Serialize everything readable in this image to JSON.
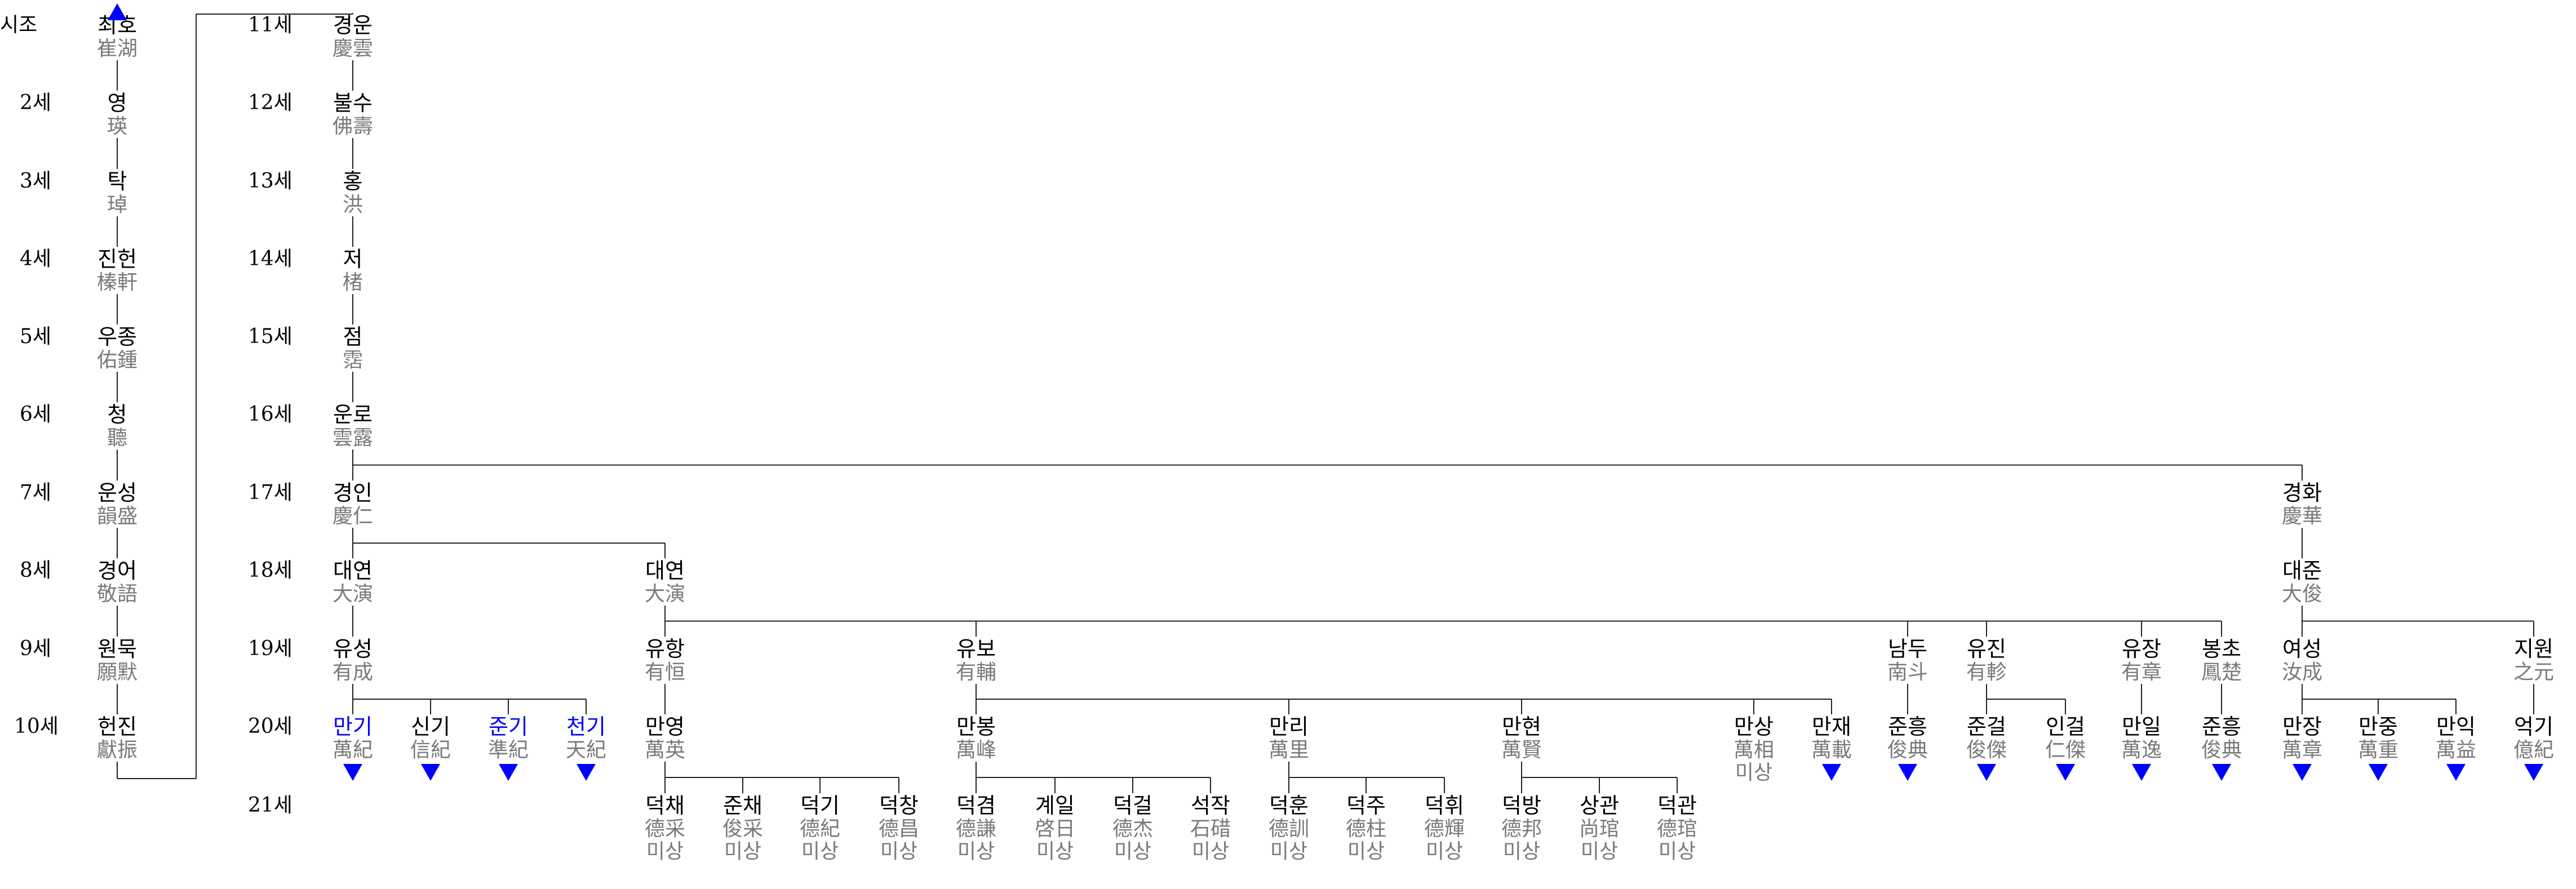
{
  "generations": [
    {
      "id": "g1",
      "label": "시조"
    },
    {
      "id": "g2",
      "label": "2세"
    },
    {
      "id": "g3",
      "label": "3세"
    },
    {
      "id": "g4",
      "label": "4세"
    },
    {
      "id": "g5",
      "label": "5세"
    },
    {
      "id": "g6",
      "label": "6세"
    },
    {
      "id": "g7",
      "label": "7세"
    },
    {
      "id": "g8",
      "label": "8세"
    },
    {
      "id": "g9",
      "label": "9세"
    },
    {
      "id": "g10",
      "label": "10세"
    },
    {
      "id": "g11",
      "label": "11세"
    },
    {
      "id": "g12",
      "label": "12세"
    },
    {
      "id": "g13",
      "label": "13세"
    },
    {
      "id": "g14",
      "label": "14세"
    },
    {
      "id": "g15",
      "label": "15세"
    },
    {
      "id": "g16",
      "label": "16세"
    },
    {
      "id": "g17",
      "label": "17세"
    },
    {
      "id": "g18",
      "label": "18세"
    },
    {
      "id": "g19",
      "label": "19세"
    },
    {
      "id": "g20",
      "label": "20세"
    },
    {
      "id": "g21",
      "label": "21세"
    }
  ],
  "people": [
    {
      "id": "p1",
      "parent": null,
      "gen": "g1",
      "ko": "최호",
      "hanja": "崔湖"
    },
    {
      "id": "p2",
      "parent": "p1",
      "gen": "g2",
      "ko": "영",
      "hanja": "瑛"
    },
    {
      "id": "p3",
      "parent": "p2",
      "gen": "g3",
      "ko": "탁",
      "hanja": "琸"
    },
    {
      "id": "p4",
      "parent": "p3",
      "gen": "g4",
      "ko": "진헌",
      "hanja": "榛軒"
    },
    {
      "id": "p5",
      "parent": "p4",
      "gen": "g5",
      "ko": "우종",
      "hanja": "佑鍾"
    },
    {
      "id": "p6",
      "parent": "p5",
      "gen": "g6",
      "ko": "청",
      "hanja": "聽"
    },
    {
      "id": "p7",
      "parent": "p6",
      "gen": "g7",
      "ko": "운성",
      "hanja": "韻盛"
    },
    {
      "id": "p8",
      "parent": "p7",
      "gen": "g8",
      "ko": "경어",
      "hanja": "敬語"
    },
    {
      "id": "p9",
      "parent": "p8",
      "gen": "g9",
      "ko": "원묵",
      "hanja": "願默"
    },
    {
      "id": "p10",
      "parent": "p9",
      "gen": "g10",
      "ko": "헌진",
      "hanja": "獻振"
    },
    {
      "id": "p11",
      "parent": "p10",
      "gen": "g11",
      "ko": "경운",
      "hanja": "慶雲"
    },
    {
      "id": "p12",
      "parent": "p11",
      "gen": "g12",
      "ko": "불수",
      "hanja": "佛壽"
    },
    {
      "id": "p13",
      "parent": "p12",
      "gen": "g13",
      "ko": "홍",
      "hanja": "洪"
    },
    {
      "id": "p14",
      "parent": "p13",
      "gen": "g14",
      "ko": "저",
      "hanja": "楮"
    },
    {
      "id": "p15",
      "parent": "p14",
      "gen": "g15",
      "ko": "점",
      "hanja": "霑"
    },
    {
      "id": "p16",
      "parent": "p15",
      "gen": "g16",
      "ko": "운로",
      "hanja": "雲露"
    },
    {
      "id": "p17",
      "parent": "p16",
      "gen": "g17",
      "ko": "경인",
      "hanja": "慶仁"
    },
    {
      "id": "p18",
      "parent": "p16",
      "gen": "g17",
      "ko": "경화",
      "hanja": "慶華"
    },
    {
      "id": "p19",
      "parent": "p17",
      "gen": "g18",
      "ko": "대연",
      "hanja": "大演"
    },
    {
      "id": "p20",
      "parent": "p17",
      "gen": "g18",
      "ko": "대연",
      "hanja": "大演"
    },
    {
      "id": "p21",
      "parent": "p18",
      "gen": "g18",
      "ko": "대준",
      "hanja": "大俊"
    },
    {
      "id": "p22",
      "parent": "p19",
      "gen": "g19",
      "ko": "유성",
      "hanja": "有成"
    },
    {
      "id": "p23",
      "parent": "p20",
      "gen": "g19",
      "ko": "유항",
      "hanja": "有恒"
    },
    {
      "id": "p24",
      "parent": "p20",
      "gen": "g19",
      "ko": "유보",
      "hanja": "有輔"
    },
    {
      "id": "p25",
      "parent": "p20",
      "gen": "g19",
      "ko": "남두",
      "hanja": "南斗"
    },
    {
      "id": "p26",
      "parent": "p20",
      "gen": "g19",
      "ko": "유진",
      "hanja": "有軫"
    },
    {
      "id": "p27",
      "parent": "p20",
      "gen": "g19",
      "ko": "유장",
      "hanja": "有章"
    },
    {
      "id": "p28",
      "parent": "p20",
      "gen": "g19",
      "ko": "봉초",
      "hanja": "鳳楚"
    },
    {
      "id": "p29",
      "parent": "p21",
      "gen": "g19",
      "ko": "여성",
      "hanja": "汝成"
    },
    {
      "id": "p30",
      "parent": "p21",
      "gen": "g19",
      "ko": "지원",
      "hanja": "之元"
    },
    {
      "id": "p31",
      "parent": "p22",
      "gen": "g20",
      "ko": "만기",
      "hanja": "萬紀",
      "blue": true,
      "more": true
    },
    {
      "id": "p32",
      "parent": "p22",
      "gen": "g20",
      "ko": "신기",
      "hanja": "信紀",
      "more": true
    },
    {
      "id": "p33",
      "parent": "p22",
      "gen": "g20",
      "ko": "준기",
      "hanja": "準紀",
      "blue": true,
      "more": true
    },
    {
      "id": "p34",
      "parent": "p22",
      "gen": "g20",
      "ko": "천기",
      "hanja": "天紀",
      "blue": true,
      "more": true
    },
    {
      "id": "p35",
      "parent": "p23",
      "gen": "g20",
      "ko": "만영",
      "hanja": "萬英"
    },
    {
      "id": "p36",
      "parent": "p24",
      "gen": "g20",
      "ko": "만봉",
      "hanja": "萬峰"
    },
    {
      "id": "p37",
      "parent": "p24",
      "gen": "g20",
      "ko": "만리",
      "hanja": "萬里"
    },
    {
      "id": "p38",
      "parent": "p24",
      "gen": "g20",
      "ko": "만현",
      "hanja": "萬賢"
    },
    {
      "id": "p39",
      "parent": "p24",
      "gen": "g20",
      "ko": "만상",
      "hanja": "萬相",
      "note": "미상"
    },
    {
      "id": "p40",
      "parent": "p24",
      "gen": "g20",
      "ko": "만재",
      "hanja": "萬載",
      "more": true
    },
    {
      "id": "p41",
      "parent": "p25",
      "gen": "g20",
      "ko": "준흥",
      "hanja": "俊典",
      "more": true
    },
    {
      "id": "p42",
      "parent": "p26",
      "gen": "g20",
      "ko": "준걸",
      "hanja": "俊傑",
      "more": true
    },
    {
      "id": "p43",
      "parent": "p26",
      "gen": "g20",
      "ko": "인걸",
      "hanja": "仁傑",
      "more": true
    },
    {
      "id": "p44",
      "parent": "p27",
      "gen": "g20",
      "ko": "만일",
      "hanja": "萬逸",
      "more": true
    },
    {
      "id": "p45",
      "parent": "p28",
      "gen": "g20",
      "ko": "준흥",
      "hanja": "俊典",
      "more": true
    },
    {
      "id": "p46",
      "parent": "p29",
      "gen": "g20",
      "ko": "만장",
      "hanja": "萬章",
      "more": true
    },
    {
      "id": "p47",
      "parent": "p29",
      "gen": "g20",
      "ko": "만중",
      "hanja": "萬重",
      "more": true
    },
    {
      "id": "p48",
      "parent": "p29",
      "gen": "g20",
      "ko": "만익",
      "hanja": "萬益",
      "more": true
    },
    {
      "id": "p49",
      "parent": "p30",
      "gen": "g20",
      "ko": "억기",
      "hanja": "億紀",
      "more": true
    },
    {
      "id": "p50",
      "parent": "p35",
      "gen": "g21",
      "ko": "덕채",
      "hanja": "德采",
      "note": "미상"
    },
    {
      "id": "p51",
      "parent": "p35",
      "gen": "g21",
      "ko": "준채",
      "hanja": "俊采",
      "note": "미상"
    },
    {
      "id": "p52",
      "parent": "p35",
      "gen": "g21",
      "ko": "덕기",
      "hanja": "德紀",
      "note": "미상"
    },
    {
      "id": "p53",
      "parent": "p35",
      "gen": "g21",
      "ko": "덕창",
      "hanja": "德昌",
      "note": "미상"
    },
    {
      "id": "p54",
      "parent": "p36",
      "gen": "g21",
      "ko": "덕겸",
      "hanja": "德謙",
      "note": "미상"
    },
    {
      "id": "p55",
      "parent": "p36",
      "gen": "g21",
      "ko": "계일",
      "hanja": "啓日",
      "note": "미상"
    },
    {
      "id": "p56",
      "parent": "p36",
      "gen": "g21",
      "ko": "덕걸",
      "hanja": "德杰",
      "note": "미상"
    },
    {
      "id": "p57",
      "parent": "p36",
      "gen": "g21",
      "ko": "석작",
      "hanja": "石碏",
      "note": "미상"
    },
    {
      "id": "p58",
      "parent": "p37",
      "gen": "g21",
      "ko": "덕훈",
      "hanja": "德訓",
      "note": "미상"
    },
    {
      "id": "p59",
      "parent": "p37",
      "gen": "g21",
      "ko": "덕주",
      "hanja": "德柱",
      "note": "미상"
    },
    {
      "id": "p60",
      "parent": "p37",
      "gen": "g21",
      "ko": "덕휘",
      "hanja": "德輝",
      "note": "미상"
    },
    {
      "id": "p61",
      "parent": "p38",
      "gen": "g21",
      "ko": "덕방",
      "hanja": "德邦",
      "note": "미상"
    },
    {
      "id": "p62",
      "parent": "p38",
      "gen": "g21",
      "ko": "상관",
      "hanja": "尚琯",
      "note": "미상"
    },
    {
      "id": "p63",
      "parent": "p38",
      "gen": "g21",
      "ko": "덕관",
      "hanja": "德琯",
      "note": "미상"
    }
  ]
}
